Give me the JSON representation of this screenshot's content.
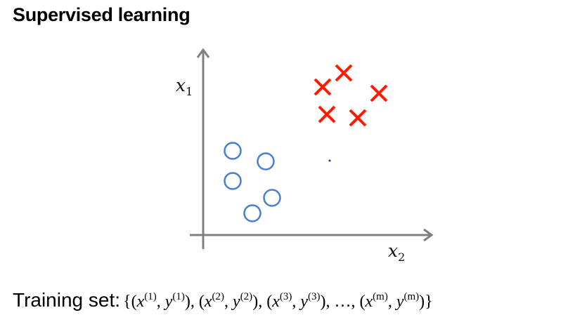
{
  "slide": {
    "title": "Supervised learning",
    "x_axis_label_var": "x",
    "x_axis_label_sub": "2",
    "y_axis_label_var": "x",
    "y_axis_label_sub": "1",
    "training_set_label": "Training set:",
    "training_set_items": [
      {
        "x": "x",
        "y": "y",
        "idx": "(1)"
      },
      {
        "x": "x",
        "y": "y",
        "idx": "(2)"
      },
      {
        "x": "x",
        "y": "y",
        "idx": "(3)"
      },
      {
        "x": "x",
        "y": "y",
        "idx": "(m)"
      }
    ],
    "ellipsis": "…"
  },
  "colors": {
    "cross": "#ff1a00",
    "circle": "#4a7fd0",
    "axis": "#808080"
  },
  "legend_marks": {
    "cross_class_count": 5,
    "circle_class_count": 5
  }
}
